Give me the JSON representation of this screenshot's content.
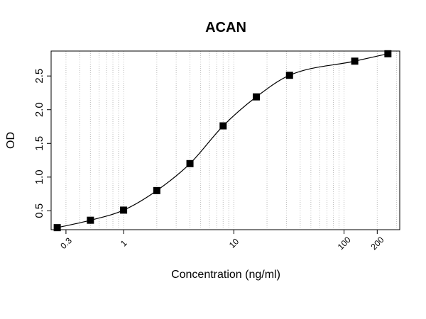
{
  "chart_data": {
    "type": "scatter",
    "title": "ACAN",
    "xlabel": "Concentration (ng/ml)",
    "ylabel": "OD",
    "x_scale": "log",
    "xlim": [
      0.22,
      320
    ],
    "ylim": [
      0.22,
      2.87
    ],
    "x_ticks": [
      {
        "value": 0.3,
        "label": "0.3"
      },
      {
        "value": 1,
        "label": "1"
      },
      {
        "value": 10,
        "label": "10"
      },
      {
        "value": 100,
        "label": "100"
      },
      {
        "value": 200,
        "label": "200"
      }
    ],
    "y_ticks": [
      {
        "value": 0.5,
        "label": "0.5"
      },
      {
        "value": 1.0,
        "label": "1.0"
      },
      {
        "value": 1.5,
        "label": "1.5"
      },
      {
        "value": 2.0,
        "label": "2.0"
      },
      {
        "value": 2.5,
        "label": "2.5"
      }
    ],
    "grid": "vertical dotted (log minor)",
    "x": [
      0.25,
      0.5,
      1,
      2,
      4,
      8,
      16,
      32,
      125,
      250
    ],
    "values": [
      0.25,
      0.36,
      0.51,
      0.8,
      1.2,
      1.76,
      2.19,
      2.51,
      2.72,
      2.83
    ],
    "fit_curve": "4-parameter logistic",
    "marker": "square",
    "colors": {
      "marker": "#000000",
      "curve": "#000000",
      "grid": "#bdbdbd",
      "frame": "#000000"
    }
  }
}
